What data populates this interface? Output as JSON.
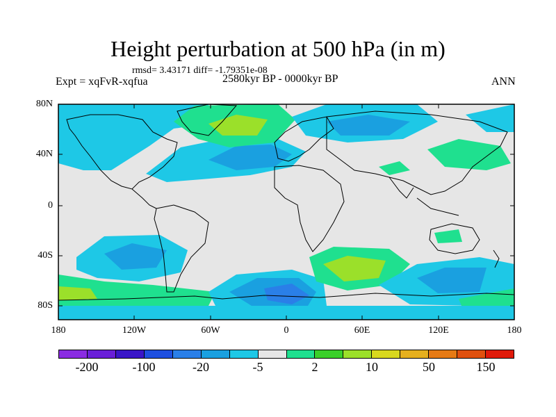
{
  "title": "Height perturbation at 500 hPa (in m)",
  "stats": "rmsd= 3.43171 diff= -1.79351e-08",
  "experiment": "Expt = xqFvR-xqfua",
  "period": "2580kyr BP - 0000kyr BP",
  "season": "ANN",
  "axes": {
    "y_ticks": [
      "80N",
      "40N",
      "0",
      "40S",
      "80S"
    ],
    "x_ticks": [
      "180",
      "120W",
      "60W",
      "0",
      "60E",
      "120E",
      "180"
    ]
  },
  "legend": {
    "colors": [
      "#8a2be2",
      "#6a1fd8",
      "#3a16c8",
      "#1e4fe0",
      "#2a7fe8",
      "#1aa0e0",
      "#1ec8e6",
      "#e6e6e6",
      "#1fe08f",
      "#3ad02a",
      "#9be02a",
      "#d8d81e",
      "#e6b01e",
      "#e67a14",
      "#e0500e",
      "#e01a0a"
    ],
    "labels": [
      "-200",
      "-100",
      "-20",
      "-5",
      "2",
      "10",
      "50",
      "150"
    ]
  },
  "palette": {
    "ocean_neutral": "#e6e6e6",
    "coastline": "#000000",
    "sky_blue": "#1ec8e6",
    "mid_blue": "#1aa0e0",
    "deep_blue": "#2a7fe8",
    "green": "#1fe08f",
    "bright_green": "#3ad02a",
    "yellow_green": "#9be02a"
  }
}
